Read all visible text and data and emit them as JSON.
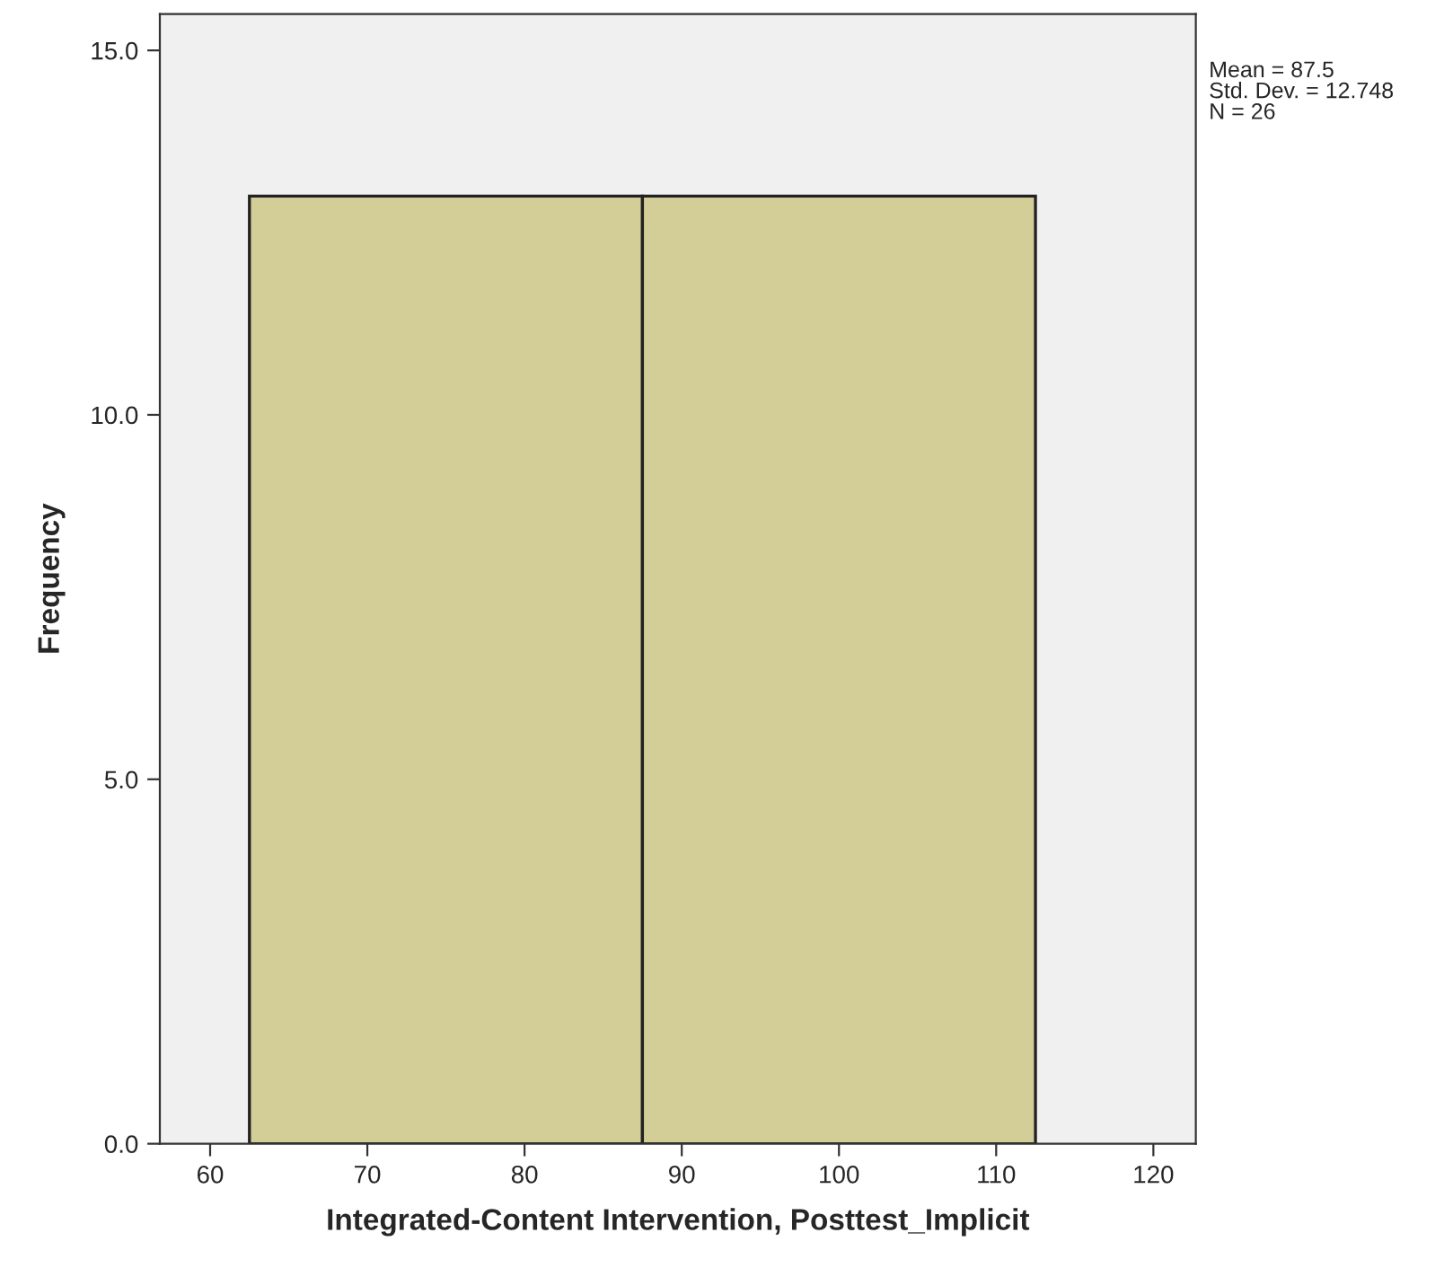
{
  "chart_data": {
    "type": "histogram",
    "xlabel": "Integrated-Content Intervention, Posttest_Implicit",
    "ylabel": "Frequency",
    "bins": [
      62.5,
      87.5,
      112.5
    ],
    "values": [
      13,
      13
    ],
    "color": "#d3ce98",
    "xlim": [
      56.8,
      122.7
    ],
    "xticks": [
      60,
      70,
      80,
      90,
      100,
      110,
      120
    ],
    "ylim": [
      0,
      15.5
    ],
    "yticks": [
      {
        "value": 0,
        "label": "0.0"
      },
      {
        "value": 5,
        "label": "5.0"
      },
      {
        "value": 10,
        "label": "10.0"
      },
      {
        "value": 15,
        "label": "15.0"
      }
    ],
    "annotations": [
      "Mean = 87.5",
      "Std. Dev. = 12.748",
      "N = 26"
    ],
    "grid": false,
    "legend": false
  }
}
